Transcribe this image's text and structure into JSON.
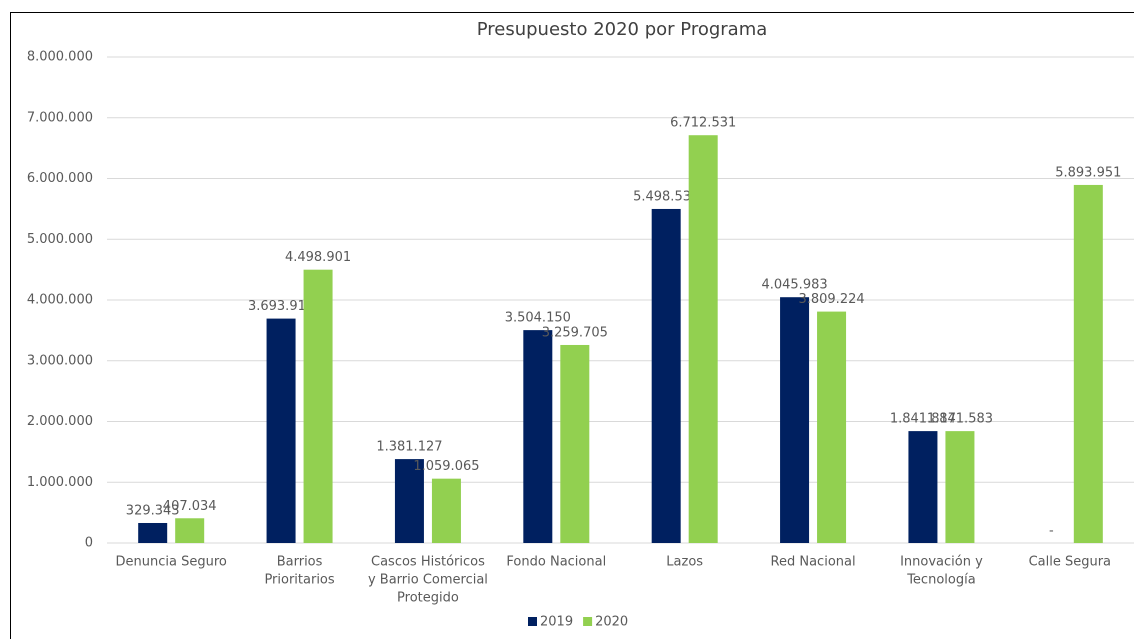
{
  "chart_data": {
    "type": "bar",
    "title": "Presupuesto 2020 por Programa",
    "categories": [
      [
        "Denuncia Seguro"
      ],
      [
        "Barrios",
        "Prioritarios"
      ],
      [
        "Cascos Históricos",
        "y Barrio Comercial",
        "Protegido"
      ],
      [
        "Fondo Nacional"
      ],
      [
        "Lazos"
      ],
      [
        "Red Nacional"
      ],
      [
        "Innovación y",
        "Tecnología"
      ],
      [
        "Calle Segura"
      ]
    ],
    "series": [
      {
        "name": "2019",
        "color": "#002060",
        "values": [
          329343,
          3693914,
          1381127,
          3504150,
          5498539,
          4045983,
          1841817,
          0
        ],
        "value_labels": [
          "329.343",
          "3.693.914",
          "1.381.127",
          "3.504.150",
          "5.498.539",
          "4.045.983",
          "1.841.817",
          "-"
        ]
      },
      {
        "name": "2020",
        "color": "#92d050",
        "values": [
          407034,
          4498901,
          1059065,
          3259705,
          6712531,
          3809224,
          1841583,
          5893951
        ],
        "value_labels": [
          "407.034",
          "4.498.901",
          "1.059.065",
          "3.259.705",
          "6.712.531",
          "3.809.224",
          "1.841.583",
          "5.893.951"
        ]
      }
    ],
    "ylim": [
      0,
      8000000
    ],
    "yticks": [
      0,
      {
        "value": 1000000,
        "label": "1.000.000"
      },
      {
        "value": 2000000,
        "label": "2.000.000"
      },
      {
        "value": 3000000,
        "label": "3.000.000"
      },
      {
        "value": 4000000,
        "label": "4.000.000"
      },
      {
        "value": 5000000,
        "label": "5.000.000"
      },
      {
        "value": 6000000,
        "label": "6.000.000"
      },
      {
        "value": 7000000,
        "label": "7.000.000"
      },
      {
        "value": 8000000,
        "label": "8.000.000"
      }
    ],
    "grid": true,
    "legend": "bottom"
  }
}
